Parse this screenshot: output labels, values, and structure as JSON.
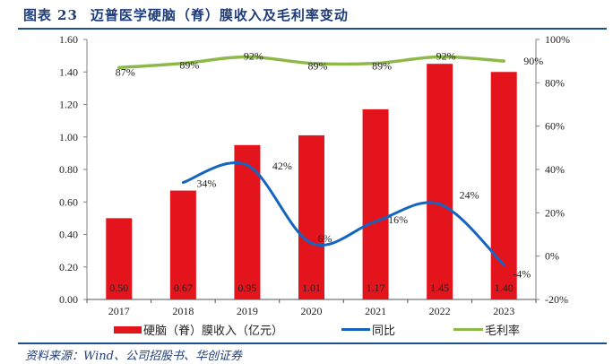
{
  "header": {
    "label": "图表",
    "number": "23",
    "title": "迈普医学硬脑（脊）膜收入及毛利率变动"
  },
  "source": "资料来源：Wind、公司招股书、华创证券",
  "colors": {
    "bar": "#e3141c",
    "yoy": "#1565c0",
    "margin": "#8fb84a",
    "rule": "#1f4e8c",
    "axis": "#808080"
  },
  "chart_data": {
    "type": "bar",
    "title": "迈普医学硬脑（脊）膜收入及毛利率变动",
    "categories": [
      "2017",
      "2018",
      "2019",
      "2020",
      "2021",
      "2022",
      "2023"
    ],
    "series": [
      {
        "name": "硬脑（脊）膜收入（亿元）",
        "type": "bar",
        "axis": "left",
        "values": [
          0.5,
          0.67,
          0.95,
          1.01,
          1.17,
          1.45,
          1.4
        ],
        "labels": [
          "0.50",
          "0.67",
          "0.95",
          "1.01",
          "1.17",
          "1.45",
          "1.40"
        ]
      },
      {
        "name": "同比",
        "type": "line",
        "axis": "right",
        "smooth": true,
        "values": [
          null,
          34,
          42,
          6,
          16,
          24,
          -4
        ],
        "labels": [
          null,
          "34%",
          "42%",
          "6%",
          "16%",
          "24%",
          "-4%"
        ]
      },
      {
        "name": "毛利率",
        "type": "line",
        "axis": "right",
        "values": [
          87,
          89,
          92,
          89,
          89,
          92,
          90
        ],
        "labels": [
          "87%",
          "89%",
          "92%",
          "89%",
          "89%",
          "92%",
          "90%"
        ]
      }
    ],
    "ylim_left": [
      0,
      1.6
    ],
    "yticks_left": [
      "0.00",
      "0.20",
      "0.40",
      "0.60",
      "0.80",
      "1.00",
      "1.20",
      "1.40",
      "1.60"
    ],
    "ylim_right": [
      -20,
      100
    ],
    "yticks_right": [
      "-20%",
      "0%",
      "20%",
      "40%",
      "60%",
      "80%",
      "100%"
    ],
    "xlabel": "",
    "ylabel": "",
    "grid": false,
    "legend_position": "bottom"
  }
}
